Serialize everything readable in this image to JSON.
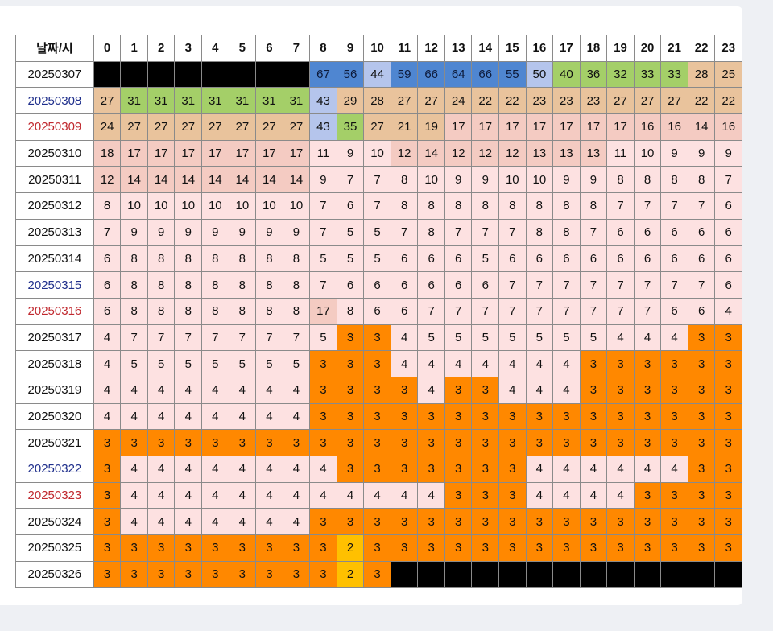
{
  "header": {
    "corner": "날짜/시",
    "hours": [
      "0",
      "1",
      "2",
      "3",
      "4",
      "5",
      "6",
      "7",
      "8",
      "9",
      "10",
      "11",
      "12",
      "13",
      "14",
      "15",
      "16",
      "17",
      "18",
      "19",
      "20",
      "21",
      "22",
      "23"
    ]
  },
  "legend_colors": {
    "none": "#000000",
    "very_bad": "#4f86d1",
    "bad_light": "#b5c5ec",
    "good_green": "#a4cf68",
    "tan": "#e9c39c",
    "salmon": "#f4cbc2",
    "pink": "#fde1e1",
    "orange": "#ff8800",
    "gold": "#ffc000"
  },
  "chart_data": {
    "type": "table",
    "columns": [
      "0",
      "1",
      "2",
      "3",
      "4",
      "5",
      "6",
      "7",
      "8",
      "9",
      "10",
      "11",
      "12",
      "13",
      "14",
      "15",
      "16",
      "17",
      "18",
      "19",
      "20",
      "21",
      "22",
      "23"
    ],
    "rows": [
      {
        "date": "20250307",
        "day": "weekday",
        "values": [
          null,
          null,
          null,
          null,
          null,
          null,
          null,
          null,
          67,
          56,
          44,
          59,
          66,
          64,
          66,
          55,
          50,
          40,
          36,
          32,
          33,
          33,
          28,
          25
        ]
      },
      {
        "date": "20250308",
        "day": "sat",
        "values": [
          27,
          31,
          31,
          31,
          31,
          31,
          31,
          31,
          43,
          29,
          28,
          27,
          27,
          24,
          22,
          22,
          23,
          23,
          23,
          27,
          27,
          27,
          22,
          22
        ]
      },
      {
        "date": "20250309",
        "day": "sun",
        "values": [
          24,
          27,
          27,
          27,
          27,
          27,
          27,
          27,
          43,
          35,
          27,
          21,
          19,
          17,
          17,
          17,
          17,
          17,
          17,
          17,
          16,
          16,
          14,
          16
        ]
      },
      {
        "date": "20250310",
        "day": "weekday",
        "values": [
          18,
          17,
          17,
          17,
          17,
          17,
          17,
          17,
          11,
          9,
          10,
          12,
          14,
          12,
          12,
          12,
          13,
          13,
          13,
          11,
          10,
          9,
          9,
          9
        ]
      },
      {
        "date": "20250311",
        "day": "weekday",
        "values": [
          12,
          14,
          14,
          14,
          14,
          14,
          14,
          14,
          9,
          7,
          7,
          8,
          10,
          9,
          9,
          10,
          10,
          9,
          9,
          8,
          8,
          8,
          8,
          7
        ]
      },
      {
        "date": "20250312",
        "day": "weekday",
        "values": [
          8,
          10,
          10,
          10,
          10,
          10,
          10,
          10,
          7,
          6,
          7,
          8,
          8,
          8,
          8,
          8,
          8,
          8,
          8,
          7,
          7,
          7,
          7,
          6
        ]
      },
      {
        "date": "20250313",
        "day": "weekday",
        "values": [
          7,
          9,
          9,
          9,
          9,
          9,
          9,
          9,
          7,
          5,
          5,
          7,
          8,
          7,
          7,
          7,
          8,
          8,
          7,
          6,
          6,
          6,
          6,
          6
        ]
      },
      {
        "date": "20250314",
        "day": "weekday",
        "values": [
          6,
          8,
          8,
          8,
          8,
          8,
          8,
          8,
          5,
          5,
          5,
          6,
          6,
          6,
          5,
          6,
          6,
          6,
          6,
          6,
          6,
          6,
          6,
          6
        ]
      },
      {
        "date": "20250315",
        "day": "sat",
        "values": [
          6,
          8,
          8,
          8,
          8,
          8,
          8,
          8,
          7,
          6,
          6,
          6,
          6,
          6,
          6,
          7,
          7,
          7,
          7,
          7,
          7,
          7,
          7,
          6
        ]
      },
      {
        "date": "20250316",
        "day": "sun",
        "values": [
          6,
          8,
          8,
          8,
          8,
          8,
          8,
          8,
          17,
          8,
          6,
          6,
          7,
          7,
          7,
          7,
          7,
          7,
          7,
          7,
          7,
          6,
          6,
          4
        ]
      },
      {
        "date": "20250317",
        "day": "weekday",
        "values": [
          4,
          7,
          7,
          7,
          7,
          7,
          7,
          7,
          5,
          3,
          3,
          4,
          5,
          5,
          5,
          5,
          5,
          5,
          5,
          4,
          4,
          4,
          3,
          3
        ]
      },
      {
        "date": "20250318",
        "day": "weekday",
        "values": [
          4,
          5,
          5,
          5,
          5,
          5,
          5,
          5,
          3,
          3,
          3,
          4,
          4,
          4,
          4,
          4,
          4,
          4,
          3,
          3,
          3,
          3,
          3,
          3
        ]
      },
      {
        "date": "20250319",
        "day": "weekday",
        "values": [
          4,
          4,
          4,
          4,
          4,
          4,
          4,
          4,
          3,
          3,
          3,
          3,
          4,
          3,
          3,
          4,
          4,
          4,
          3,
          3,
          3,
          3,
          3,
          3
        ]
      },
      {
        "date": "20250320",
        "day": "weekday",
        "values": [
          4,
          4,
          4,
          4,
          4,
          4,
          4,
          4,
          3,
          3,
          3,
          3,
          3,
          3,
          3,
          3,
          3,
          3,
          3,
          3,
          3,
          3,
          3,
          3
        ]
      },
      {
        "date": "20250321",
        "day": "weekday",
        "values": [
          3,
          3,
          3,
          3,
          3,
          3,
          3,
          3,
          3,
          3,
          3,
          3,
          3,
          3,
          3,
          3,
          3,
          3,
          3,
          3,
          3,
          3,
          3,
          3
        ]
      },
      {
        "date": "20250322",
        "day": "sat",
        "values": [
          3,
          4,
          4,
          4,
          4,
          4,
          4,
          4,
          4,
          3,
          3,
          3,
          3,
          3,
          3,
          3,
          4,
          4,
          4,
          4,
          4,
          4,
          3,
          3
        ]
      },
      {
        "date": "20250323",
        "day": "sun",
        "values": [
          3,
          4,
          4,
          4,
          4,
          4,
          4,
          4,
          4,
          4,
          4,
          4,
          4,
          3,
          3,
          3,
          4,
          4,
          4,
          4,
          3,
          3,
          3,
          3
        ]
      },
      {
        "date": "20250324",
        "day": "weekday",
        "values": [
          3,
          4,
          4,
          4,
          4,
          4,
          4,
          4,
          3,
          3,
          3,
          3,
          3,
          3,
          3,
          3,
          3,
          3,
          3,
          3,
          3,
          3,
          3,
          3
        ]
      },
      {
        "date": "20250325",
        "day": "weekday",
        "values": [
          3,
          3,
          3,
          3,
          3,
          3,
          3,
          3,
          3,
          2,
          3,
          3,
          3,
          3,
          3,
          3,
          3,
          3,
          3,
          3,
          3,
          3,
          3,
          3
        ]
      },
      {
        "date": "20250326",
        "day": "weekday",
        "values": [
          3,
          3,
          3,
          3,
          3,
          3,
          3,
          3,
          3,
          2,
          3,
          null,
          null,
          null,
          null,
          null,
          null,
          null,
          null,
          null,
          null,
          null,
          null,
          null
        ]
      }
    ]
  }
}
